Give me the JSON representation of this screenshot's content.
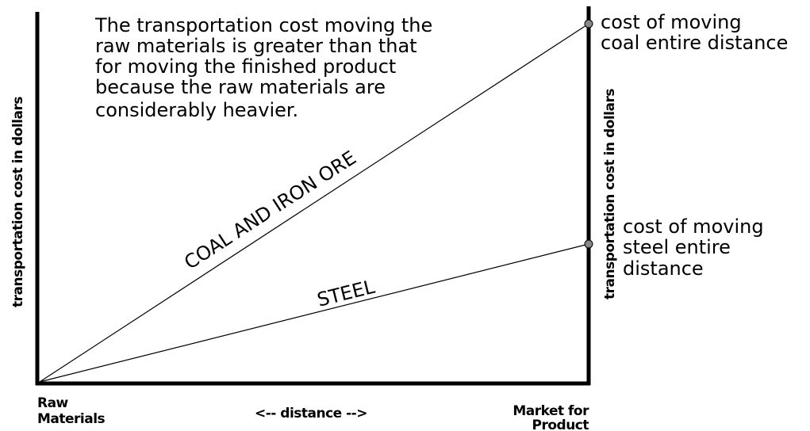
{
  "diagram": {
    "note_lines": [
      "The transportation cost moving the",
      "raw materials is greater than that",
      "for moving the finished product",
      "because the raw materials are",
      "considerably heavier."
    ],
    "y_axis_label": "transportation cost in dollars",
    "y2_axis_label": "transportation cost in dollars",
    "x_axis_label": "<-- distance -->",
    "origin_label": [
      "Raw",
      "Materials"
    ],
    "end_label": [
      "Market for",
      "Product"
    ],
    "lines": [
      {
        "label": "COAL AND IRON ORE",
        "annotation": [
          "cost of moving",
          "coal entire distance"
        ]
      },
      {
        "label": "STEEL",
        "annotation": [
          "cost of moving",
          "steel entire",
          "distance"
        ]
      }
    ]
  }
}
